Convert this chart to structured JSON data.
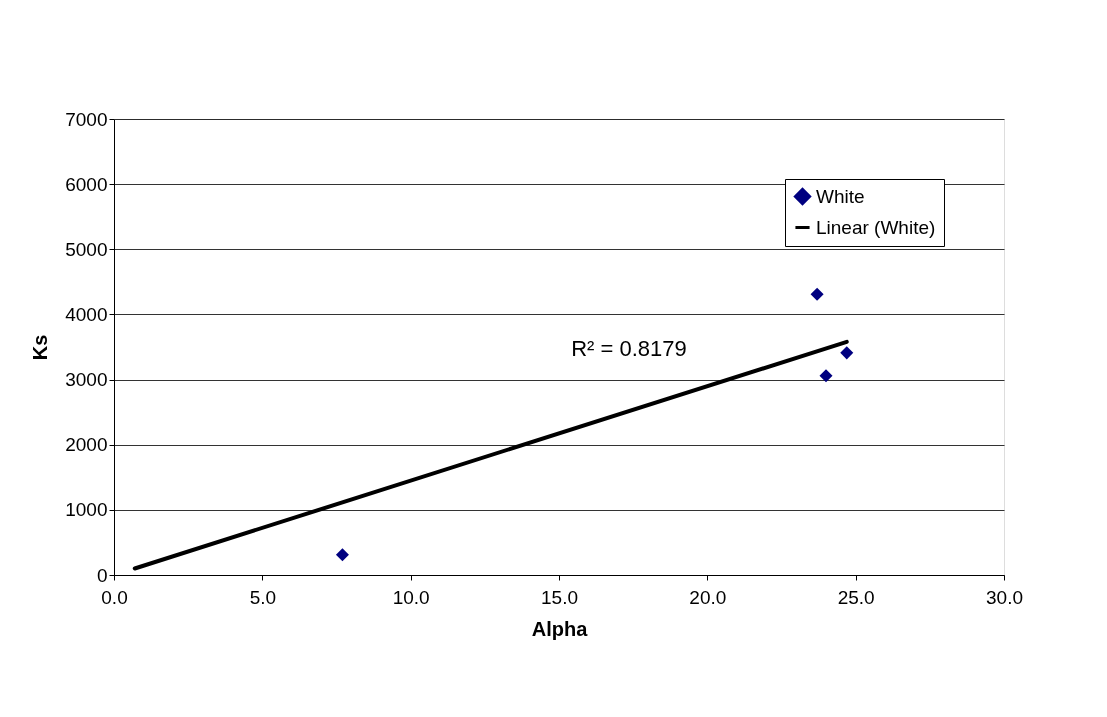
{
  "chart_data": {
    "type": "scatter",
    "xlabel": "Alpha",
    "ylabel": "Ks",
    "series": [
      {
        "name": "White",
        "color": "#000080",
        "marker": "diamond",
        "x": [
          7.7,
          23.7,
          24.0,
          24.7
        ],
        "values": [
          310,
          4310,
          3060,
          3410
        ]
      },
      {
        "name": "Linear (White)",
        "type": "line",
        "color": "#000000",
        "line_style": "solid",
        "x": [
          0.7,
          24.7
        ],
        "values": [
          100,
          3580
        ]
      }
    ],
    "annotations": [
      "R² = 0.8179"
    ],
    "xlim": [
      0,
      30
    ],
    "ylim": [
      0,
      7000
    ],
    "xticks": [
      {
        "value": 0,
        "label": "0.0"
      },
      {
        "value": 5,
        "label": "5.0"
      },
      {
        "value": 10,
        "label": "10.0"
      },
      {
        "value": 15,
        "label": "15.0"
      },
      {
        "value": 20,
        "label": "20.0"
      },
      {
        "value": 25,
        "label": "25.0"
      },
      {
        "value": 30,
        "label": "30.0"
      }
    ],
    "yticks": [
      0,
      1000,
      2000,
      3000,
      4000,
      5000,
      6000,
      7000
    ],
    "grid": "y",
    "legend": "top right"
  }
}
